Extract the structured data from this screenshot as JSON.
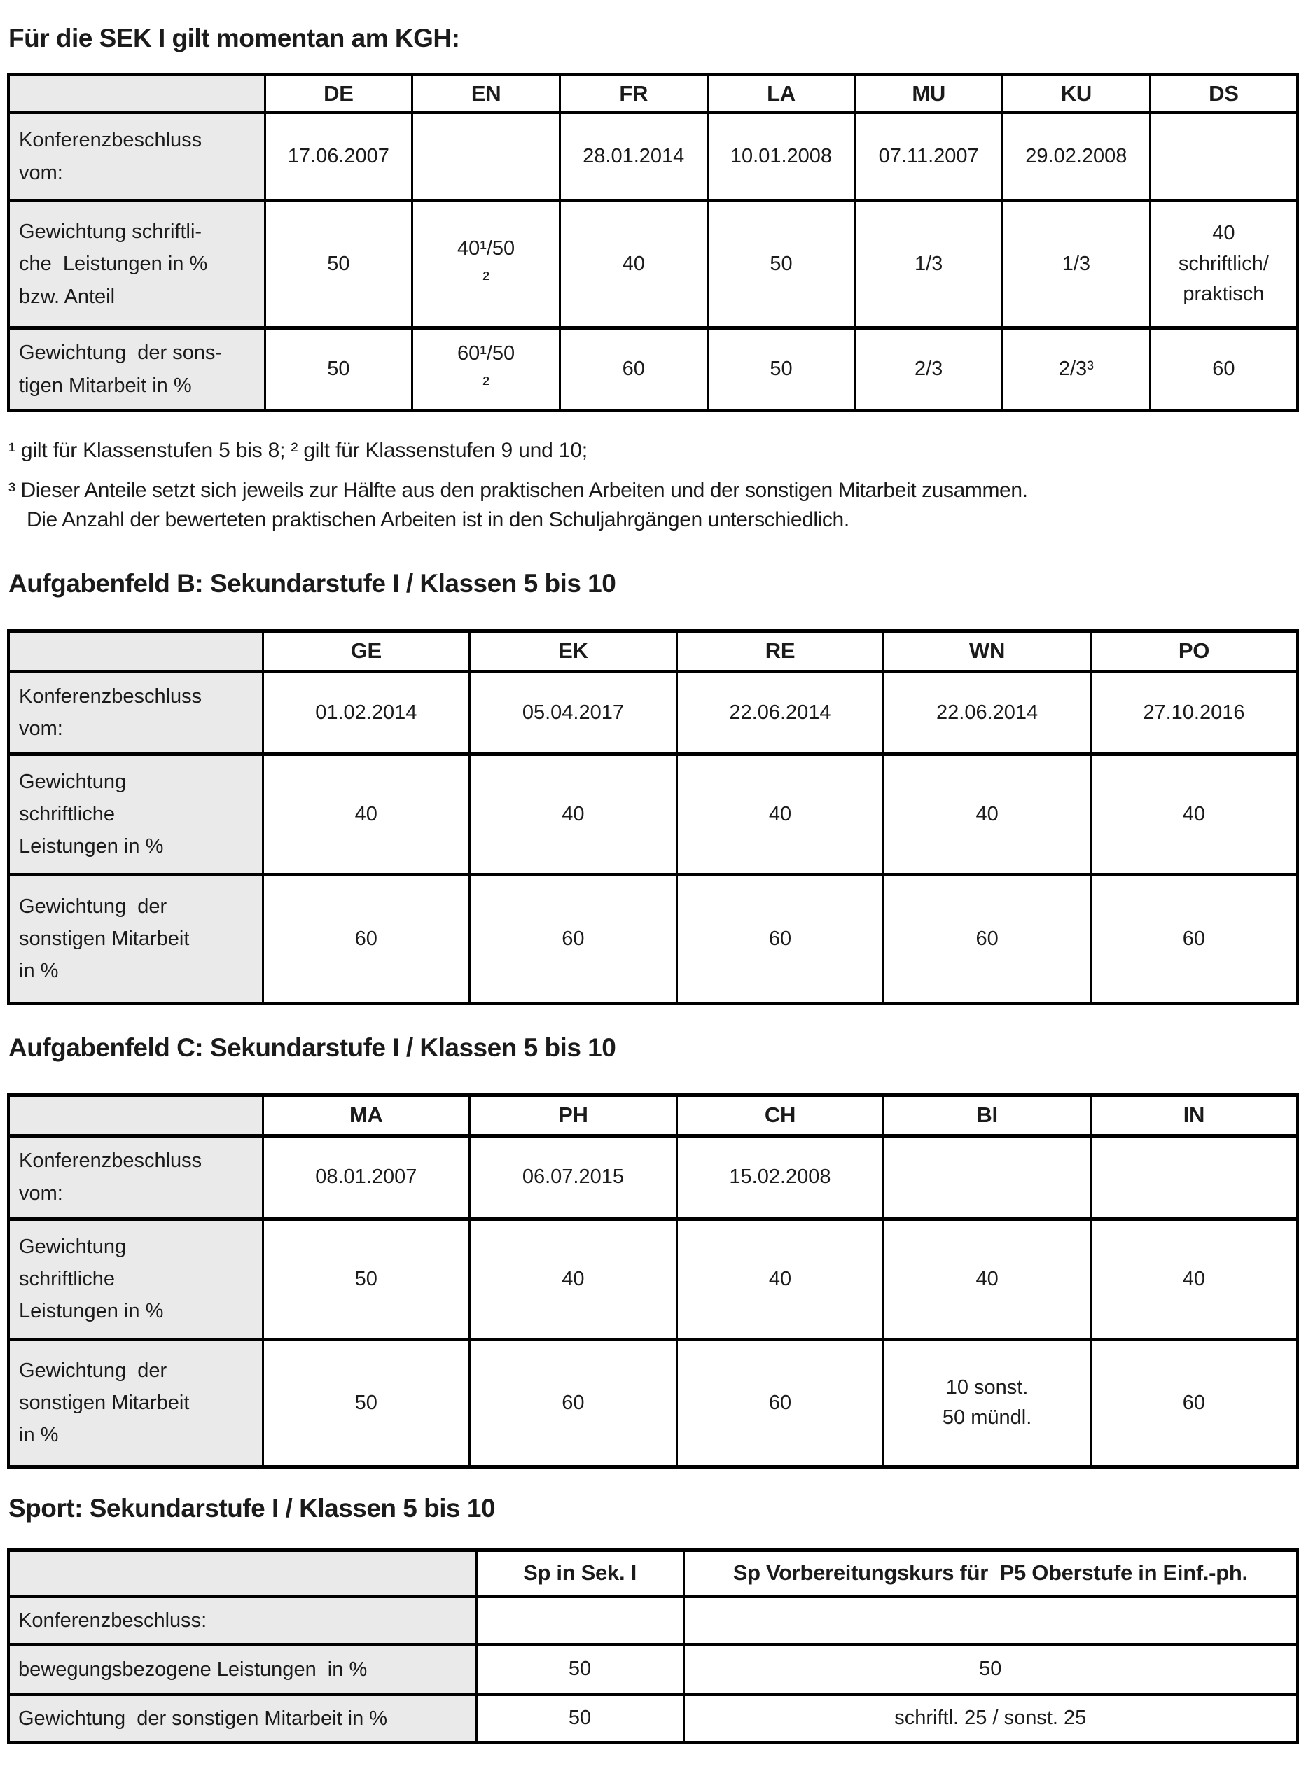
{
  "colors": {
    "label_bg": "#eaeaea",
    "border": "#000000",
    "text": "#1b1b1b",
    "page_bg": "#ffffff"
  },
  "headings": {
    "sek1": "Für die SEK I gilt momentan am KGH:",
    "aufgabenfeld_b": "Aufgabenfeld B: Sekundarstufe I / Klassen 5 bis 10",
    "aufgabenfeld_c": "Aufgabenfeld C: Sekundarstufe I / Klassen 5 bis 10",
    "sport": "Sport: Sekundarstufe I / Klassen 5 bis 10"
  },
  "footnotes": [
    "¹ gilt für Klassenstufen 5 bis 8; ² gilt für Klassenstufen 9 und 10;",
    "³ Dieser Anteile setzt sich jeweils zur Hälfte aus den praktischen Arbeiten und der sonstigen Mitarbeit zusammen.\nDie Anzahl der bewerteten praktischen Arbeiten ist in den Schuljahrgängen unterschiedlich."
  ],
  "tables": [
    {
      "name": "SEK I Gewichtung",
      "columns": [
        "",
        "DE",
        "EN",
        "FR",
        "LA",
        "MU",
        "KU",
        "DS"
      ],
      "rows": [
        {
          "label": "Konferenzbeschluss\nvom:",
          "cells": [
            "17.06.2007",
            "",
            "28.01.2014",
            "10.01.2008",
            "07.11.2007",
            "29.02.2008",
            ""
          ]
        },
        {
          "label": "Gewichtung schriftli-\nche  Leistungen in %\nbzw. Anteil",
          "cells": [
            "50",
            "40¹/50\n²",
            "40",
            "50",
            "1/3",
            "1/3",
            "40\nschriftlich/\npraktisch"
          ]
        },
        {
          "label": "Gewichtung  der sons-\ntigen Mitarbeit in %",
          "cells": [
            "50",
            "60¹/50\n²",
            "60",
            "50",
            "2/3",
            "2/3³",
            "60"
          ]
        }
      ]
    },
    {
      "name": "Aufgabenfeld B",
      "columns": [
        "",
        "GE",
        "EK",
        "RE",
        "WN",
        "PO"
      ],
      "rows": [
        {
          "label": "Konferenzbeschluss\nvom:",
          "cells": [
            "01.02.2014",
            "05.04.2017",
            "22.06.2014",
            "22.06.2014",
            "27.10.2016"
          ]
        },
        {
          "label": "Gewichtung\nschriftliche\nLeistungen in %",
          "cells": [
            "40",
            "40",
            "40",
            "40",
            "40"
          ]
        },
        {
          "label": "Gewichtung  der\nsonstigen Mitarbeit\nin %",
          "cells": [
            "60",
            "60",
            "60",
            "60",
            "60"
          ]
        }
      ]
    },
    {
      "name": "Aufgabenfeld C",
      "columns": [
        "",
        "MA",
        "PH",
        "CH",
        "BI",
        "IN"
      ],
      "rows": [
        {
          "label": "Konferenzbeschluss\nvom:",
          "cells": [
            "08.01.2007",
            "06.07.2015",
            "15.02.2008",
            "",
            ""
          ]
        },
        {
          "label": "Gewichtung\nschriftliche\nLeistungen in %",
          "cells": [
            "50",
            "40",
            "40",
            "40",
            "40"
          ]
        },
        {
          "label": "Gewichtung  der\nsonstigen Mitarbeit\nin %",
          "cells": [
            "50",
            "60",
            "60",
            "10 sonst.\n50 mündl.",
            "60"
          ]
        }
      ]
    },
    {
      "name": "Sport",
      "columns": [
        "",
        "Sp in Sek. I",
        "Sp Vorbereitungskurs für  P5 Oberstufe in Einf.-ph."
      ],
      "rows": [
        {
          "label": "Konferenzbeschluss:",
          "cells": [
            "",
            ""
          ]
        },
        {
          "label": "bewegungsbezogene Leistungen  in %",
          "cells": [
            "50",
            "50"
          ]
        },
        {
          "label": "Gewichtung  der sonstigen Mitarbeit in %",
          "cells": [
            "50",
            "schriftl. 25 / sonst. 25"
          ]
        }
      ]
    }
  ]
}
